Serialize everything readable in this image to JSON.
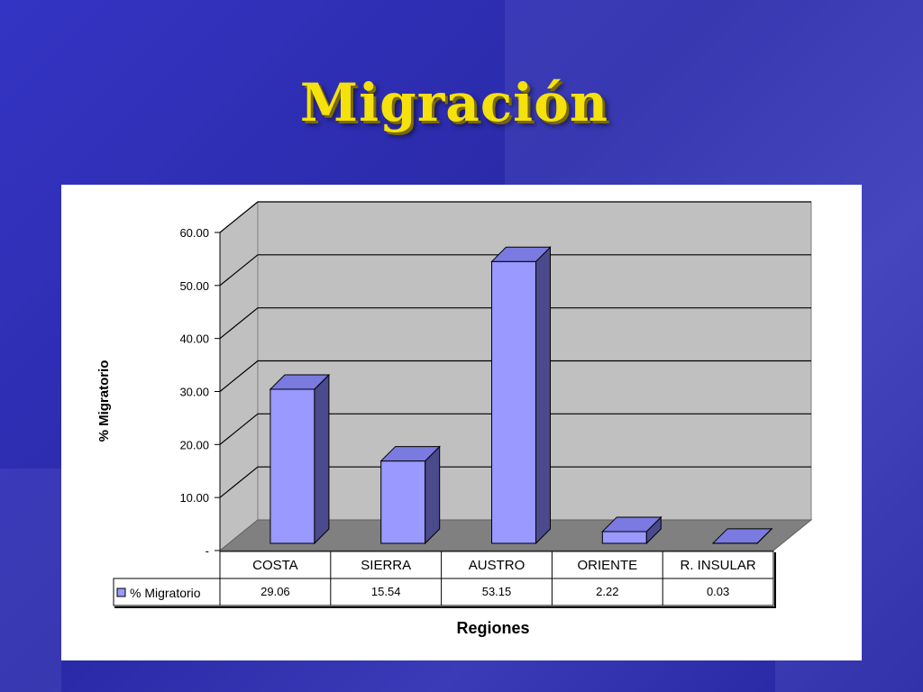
{
  "slide": {
    "title": "Migración"
  },
  "chart_data": {
    "type": "bar",
    "title": "",
    "xlabel": "Regiones",
    "ylabel": "% Migratorio",
    "ylim": [
      0,
      60
    ],
    "y_ticks": [
      "-",
      "10.00",
      "20.00",
      "30.00",
      "40.00",
      "50.00",
      "60.00"
    ],
    "categories": [
      "COSTA",
      "SIERRA",
      "AUSTRO",
      "ORIENTE",
      "R. INSULAR"
    ],
    "series": [
      {
        "name": "% Migratorio",
        "values": [
          29.06,
          15.54,
          53.15,
          2.22,
          0.03
        ],
        "value_labels": [
          "29.06",
          "15.54",
          "53.15",
          "2.22",
          "0.03"
        ]
      }
    ],
    "grid": true,
    "legend": "data-table-left",
    "colors": {
      "bar_front": "#9999ff",
      "bar_top": "#7a7ae0",
      "bar_side": "#4a4a8c",
      "wall": "#c0c0c0",
      "floor": "#808080"
    }
  }
}
